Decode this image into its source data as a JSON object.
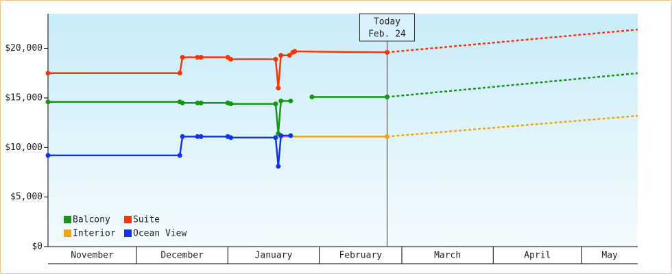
{
  "chart_data": {
    "type": "line",
    "xlim": [
      0,
      200
    ],
    "categories": [
      "November",
      "December",
      "January",
      "February",
      "March",
      "April",
      "May"
    ],
    "xticks": [
      0,
      30,
      61,
      92,
      120,
      151,
      181
    ],
    "ylim": [
      0,
      23500
    ],
    "yticks": [
      {
        "value": 0,
        "label": "$0"
      },
      {
        "value": 5000,
        "label": "$5,000"
      },
      {
        "value": 10000,
        "label": "$10,000"
      },
      {
        "value": 15000,
        "label": "$15,000"
      },
      {
        "value": 20000,
        "label": "$20,000"
      }
    ],
    "legend": "bottom-left",
    "today": {
      "x": 115,
      "label": "Today",
      "date": "Feb. 24"
    },
    "series": [
      {
        "name": "Balcony",
        "color": "#119911",
        "x": [
          0,
          44.7,
          45.6,
          50.7,
          51.9,
          61,
          62,
          77.2,
          78.1,
          79,
          82.3,
          null,
          89.5,
          115
        ],
        "values": [
          14600,
          14600,
          14500,
          14500,
          14500,
          14500,
          14400,
          14400,
          11400,
          14700,
          14700,
          null,
          15100,
          15100
        ],
        "forecast": {
          "x": [
            115,
            200
          ],
          "values": [
            15100,
            17500
          ]
        }
      },
      {
        "name": "Suite",
        "color": "#ff3300",
        "x": [
          0,
          44.7,
          45.6,
          50.7,
          51.9,
          61,
          62,
          77.2,
          78.1,
          79,
          81.9,
          83,
          83.7,
          115
        ],
        "values": [
          17500,
          17500,
          19100,
          19100,
          19100,
          19100,
          18900,
          18900,
          16000,
          19300,
          19300,
          19600,
          19700,
          19600
        ],
        "forecast": {
          "x": [
            115,
            200
          ],
          "values": [
            19600,
            21900
          ]
        }
      },
      {
        "name": "Interior",
        "color": "#f5a40c",
        "x": [
          79,
          115
        ],
        "values": [
          11100,
          11100
        ],
        "forecast": {
          "x": [
            115,
            200
          ],
          "values": [
            11100,
            13200
          ]
        }
      },
      {
        "name": "Ocean View",
        "color": "#1133ee",
        "x": [
          0,
          44.7,
          45.6,
          50.7,
          51.9,
          61,
          62,
          77.2,
          78.1,
          79,
          82.3
        ],
        "values": [
          9200,
          9200,
          11100,
          11100,
          11100,
          11100,
          11000,
          11000,
          8100,
          11200,
          11200
        ]
      }
    ]
  }
}
